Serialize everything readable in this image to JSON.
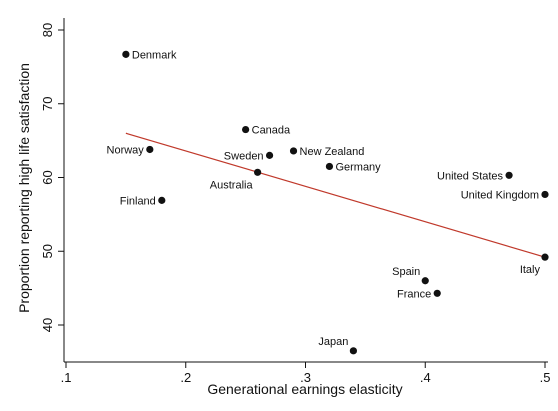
{
  "chart_data": {
    "type": "scatter",
    "xlabel": "Generational earnings elasticity",
    "ylabel": "Proportion reporting high life satisfaction",
    "xlim": [
      0.1,
      0.5
    ],
    "ylim": [
      35,
      80
    ],
    "x_ticks": [
      0.1,
      0.2,
      0.3,
      0.4,
      0.5
    ],
    "x_tick_labels": [
      ".1",
      ".2",
      ".3",
      ".4",
      ".5"
    ],
    "y_ticks": [
      40,
      50,
      60,
      70,
      80
    ],
    "y_tick_labels": [
      "40",
      "50",
      "60",
      "70",
      "80"
    ],
    "grid": false,
    "legend": "none",
    "colors": {
      "points": "#111111",
      "fit_line": "#c0392b",
      "axis": "#111111"
    },
    "points": [
      {
        "label": "Denmark",
        "x": 0.15,
        "y": 76.7,
        "label_pos": "right"
      },
      {
        "label": "Canada",
        "x": 0.25,
        "y": 66.5,
        "label_pos": "right"
      },
      {
        "label": "Norway",
        "x": 0.17,
        "y": 63.8,
        "label_pos": "left"
      },
      {
        "label": "New Zealand",
        "x": 0.29,
        "y": 63.6,
        "label_pos": "right"
      },
      {
        "label": "Sweden",
        "x": 0.27,
        "y": 63.0,
        "label_pos": "left"
      },
      {
        "label": "Germany",
        "x": 0.32,
        "y": 61.5,
        "label_pos": "right"
      },
      {
        "label": "Australia",
        "x": 0.26,
        "y": 60.7,
        "label_pos": "below-left"
      },
      {
        "label": "United States",
        "x": 0.47,
        "y": 60.3,
        "label_pos": "left"
      },
      {
        "label": "United Kingdom",
        "x": 0.5,
        "y": 57.7,
        "label_pos": "left"
      },
      {
        "label": "Finland",
        "x": 0.18,
        "y": 56.9,
        "label_pos": "left"
      },
      {
        "label": "Italy",
        "x": 0.5,
        "y": 49.2,
        "label_pos": "below-left"
      },
      {
        "label": "Spain",
        "x": 0.4,
        "y": 46.0,
        "label_pos": "above-left"
      },
      {
        "label": "France",
        "x": 0.41,
        "y": 44.3,
        "label_pos": "left"
      },
      {
        "label": "Japan",
        "x": 0.34,
        "y": 36.5,
        "label_pos": "above-left"
      }
    ],
    "fit_line": {
      "x": [
        0.15,
        0.5
      ],
      "y": [
        66.0,
        49.2
      ]
    }
  }
}
